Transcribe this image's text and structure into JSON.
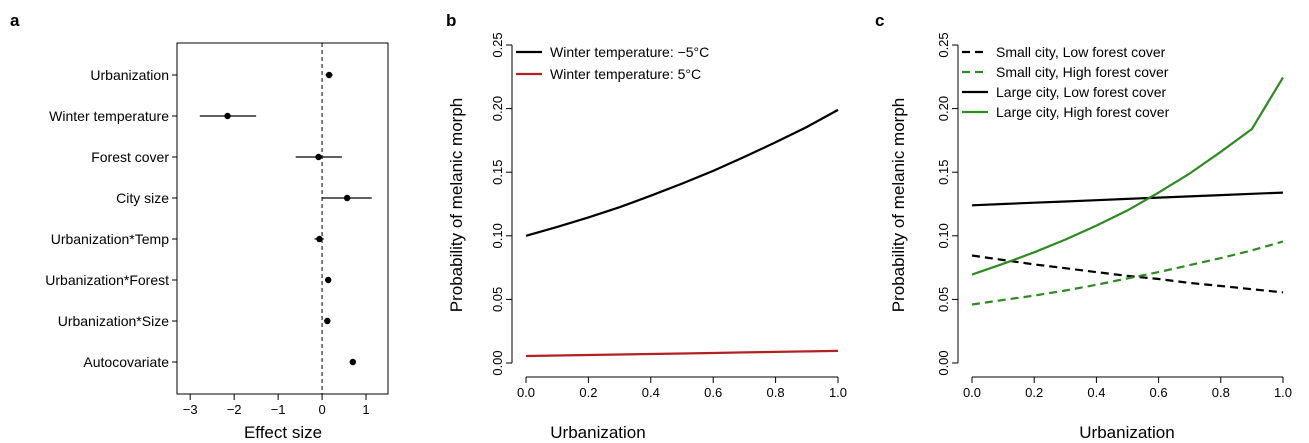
{
  "chart_data": [
    {
      "panel": "a",
      "type": "scatter",
      "title": "",
      "xlabel": "Effect size",
      "ylabel": "",
      "xlim": [
        -3.3,
        1.5
      ],
      "xticks": [
        -3,
        -2,
        -1,
        0,
        1
      ],
      "xtick_labels": [
        "−3",
        "−2",
        "−1",
        "0",
        "1"
      ],
      "reference_line": 0,
      "categories": [
        "Urbanization",
        "Winter temperature",
        "Forest cover",
        "City size",
        "Urbanization*Temp",
        "Urbanization*Forest",
        "Urbanization*Size",
        "Autocovariate"
      ],
      "estimates": [
        0.16,
        -2.15,
        -0.08,
        0.57,
        -0.06,
        0.14,
        0.12,
        0.7
      ],
      "ci_low": [
        0.08,
        -2.78,
        -0.6,
        0.0,
        -0.17,
        0.08,
        0.05,
        0.64
      ],
      "ci_high": [
        0.24,
        -1.5,
        0.45,
        1.13,
        0.04,
        0.2,
        0.19,
        0.76
      ]
    },
    {
      "panel": "b",
      "type": "line",
      "title": "",
      "xlabel": "Urbanization",
      "ylabel": "Probability of melanic morph",
      "xlim": [
        0,
        1
      ],
      "ylim": [
        0,
        0.25
      ],
      "xticks": [
        0,
        0.2,
        0.4,
        0.6,
        0.8,
        1.0
      ],
      "xtick_labels": [
        "0.0",
        "0.2",
        "0.4",
        "0.6",
        "0.8",
        "1.0"
      ],
      "yticks": [
        0,
        0.05,
        0.1,
        0.15,
        0.2,
        0.25
      ],
      "ytick_labels": [
        "0.00",
        "0.05",
        "0.10",
        "0.15",
        "0.20",
        "0.25"
      ],
      "legend_position": "top-left",
      "x": [
        0,
        0.1,
        0.2,
        0.3,
        0.4,
        0.5,
        0.6,
        0.7,
        0.8,
        0.9,
        1.0
      ],
      "series": [
        {
          "name": "Winter temperature: −5°C",
          "color": "#000000",
          "dash": false,
          "values": [
            0.1,
            0.107,
            0.1145,
            0.1225,
            0.1315,
            0.141,
            0.151,
            0.162,
            0.1735,
            0.1855,
            0.199
          ]
        },
        {
          "name": "Winter temperature:  5°C",
          "color": "#b22222",
          "dash": false,
          "values": [
            0.0055,
            0.0059,
            0.0063,
            0.0067,
            0.0071,
            0.0075,
            0.0079,
            0.0083,
            0.0087,
            0.0091,
            0.0095
          ]
        }
      ]
    },
    {
      "panel": "c",
      "type": "line",
      "title": "",
      "xlabel": "Urbanization",
      "ylabel": "Probability of melanic morph",
      "xlim": [
        0,
        1
      ],
      "ylim": [
        0,
        0.25
      ],
      "xticks": [
        0,
        0.2,
        0.4,
        0.6,
        0.8,
        1.0
      ],
      "xtick_labels": [
        "0.0",
        "0.2",
        "0.4",
        "0.6",
        "0.8",
        "1.0"
      ],
      "yticks": [
        0,
        0.05,
        0.1,
        0.15,
        0.2,
        0.25
      ],
      "ytick_labels": [
        "0.00",
        "0.05",
        "0.10",
        "0.15",
        "0.20",
        "0.25"
      ],
      "legend_position": "top-left",
      "x": [
        0,
        0.1,
        0.2,
        0.3,
        0.4,
        0.5,
        0.6,
        0.7,
        0.8,
        0.9,
        1.0
      ],
      "series": [
        {
          "name": "Small city, Low forest cover",
          "color": "#000000",
          "dash": true,
          "values": [
            0.0845,
            0.081,
            0.0775,
            0.0745,
            0.0715,
            0.0685,
            0.066,
            0.063,
            0.0605,
            0.058,
            0.0555
          ]
        },
        {
          "name": "Small city, High forest cover",
          "color": "#2e8b22",
          "dash": true,
          "values": [
            0.046,
            0.0495,
            0.053,
            0.057,
            0.0615,
            0.0665,
            0.0715,
            0.077,
            0.0825,
            0.0885,
            0.0955
          ]
        },
        {
          "name": "Large city, Low forest cover",
          "color": "#000000",
          "dash": false,
          "values": [
            0.124,
            0.125,
            0.126,
            0.127,
            0.128,
            0.129,
            0.13,
            0.131,
            0.132,
            0.133,
            0.134
          ]
        },
        {
          "name": "Large city, High forest cover",
          "color": "#2e8b22",
          "dash": false,
          "values": [
            0.0695,
            0.078,
            0.087,
            0.097,
            0.108,
            0.12,
            0.134,
            0.149,
            0.166,
            0.184,
            0.2245
          ]
        }
      ]
    }
  ],
  "panel_labels": [
    "a",
    "b",
    "c"
  ]
}
